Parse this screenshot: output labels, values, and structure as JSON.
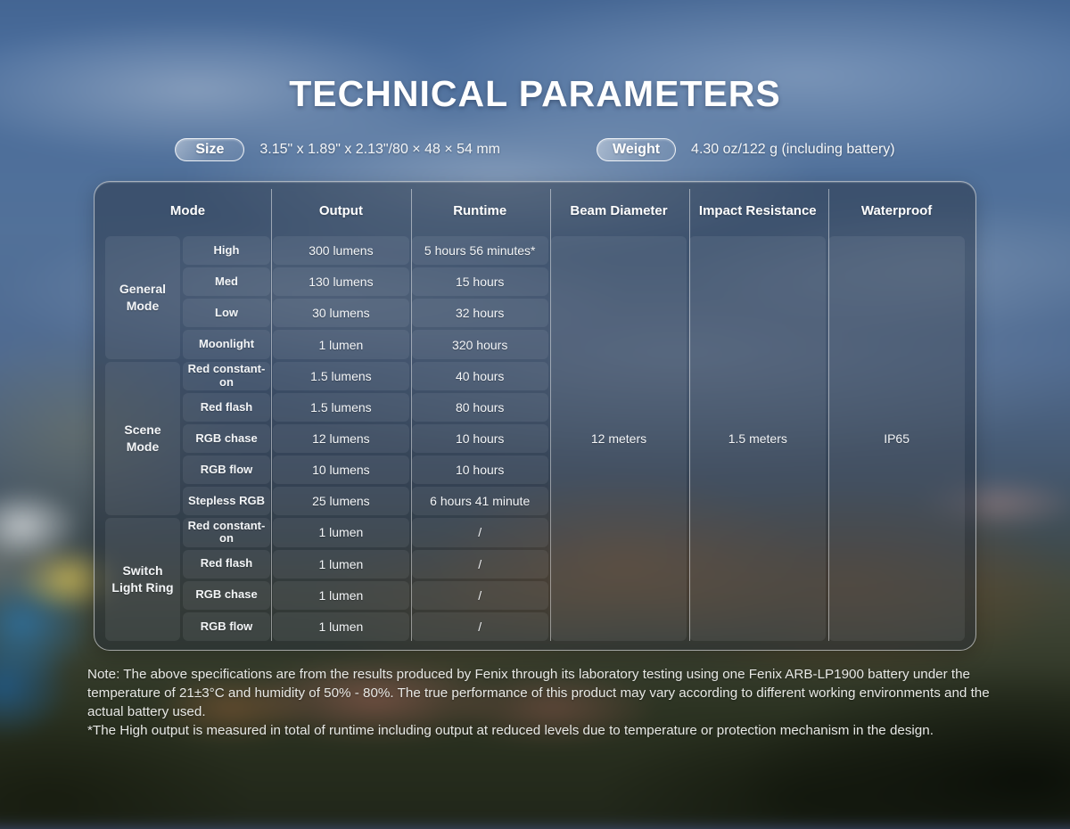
{
  "title": "TECHNICAL PARAMETERS",
  "specs": {
    "size_label": "Size",
    "size_value": "3.15\" x 1.89\" x 2.13\"/80 × 48 × 54 mm",
    "weight_label": "Weight",
    "weight_value": "4.30 oz/122 g (including battery)"
  },
  "table": {
    "headers": [
      "Mode",
      "Output",
      "Runtime",
      "Beam Diameter",
      "Impact Resistance",
      "Waterproof"
    ],
    "groups": [
      {
        "name": "General Mode",
        "rows": [
          {
            "mode": "High",
            "output": "300 lumens",
            "runtime": "5 hours 56 minutes*"
          },
          {
            "mode": "Med",
            "output": "130 lumens",
            "runtime": "15 hours"
          },
          {
            "mode": "Low",
            "output": "30 lumens",
            "runtime": "32 hours"
          },
          {
            "mode": "Moonlight",
            "output": "1 lumen",
            "runtime": "320 hours"
          }
        ]
      },
      {
        "name": "Scene Mode",
        "rows": [
          {
            "mode": "Red constant-on",
            "output": "1.5 lumens",
            "runtime": "40 hours"
          },
          {
            "mode": "Red flash",
            "output": "1.5 lumens",
            "runtime": "80 hours"
          },
          {
            "mode": "RGB chase",
            "output": "12 lumens",
            "runtime": "10 hours"
          },
          {
            "mode": "RGB flow",
            "output": "10 lumens",
            "runtime": "10 hours"
          },
          {
            "mode": "Stepless RGB",
            "output": "25 lumens",
            "runtime": "6 hours 41 minute"
          }
        ]
      },
      {
        "name": "Switch Light Ring",
        "rows": [
          {
            "mode": "Red constant-on",
            "output": "1 lumen",
            "runtime": "/"
          },
          {
            "mode": "Red flash",
            "output": "1 lumen",
            "runtime": "/"
          },
          {
            "mode": "RGB chase",
            "output": "1 lumen",
            "runtime": "/"
          },
          {
            "mode": "RGB flow",
            "output": "1 lumen",
            "runtime": "/"
          }
        ]
      }
    ],
    "merged": {
      "beam_diameter": "12 meters",
      "impact_resistance": "1.5 meters",
      "waterproof": "IP65"
    }
  },
  "notes": [
    "Note: The above specifications are from the results produced by Fenix through its laboratory testing using one Fenix ARB-LP1900 battery under the temperature of 21±3°C and humidity of 50% - 80%. The true performance of this product may vary according to different working environments and the actual battery used.",
    "*The High output is measured in total of runtime including output at reduced levels due to temperature or protection mechanism in the design."
  ],
  "colors": {
    "panel_overlay": "#242c3a",
    "separator": "#ffffff",
    "text": "#f3f5f7"
  }
}
